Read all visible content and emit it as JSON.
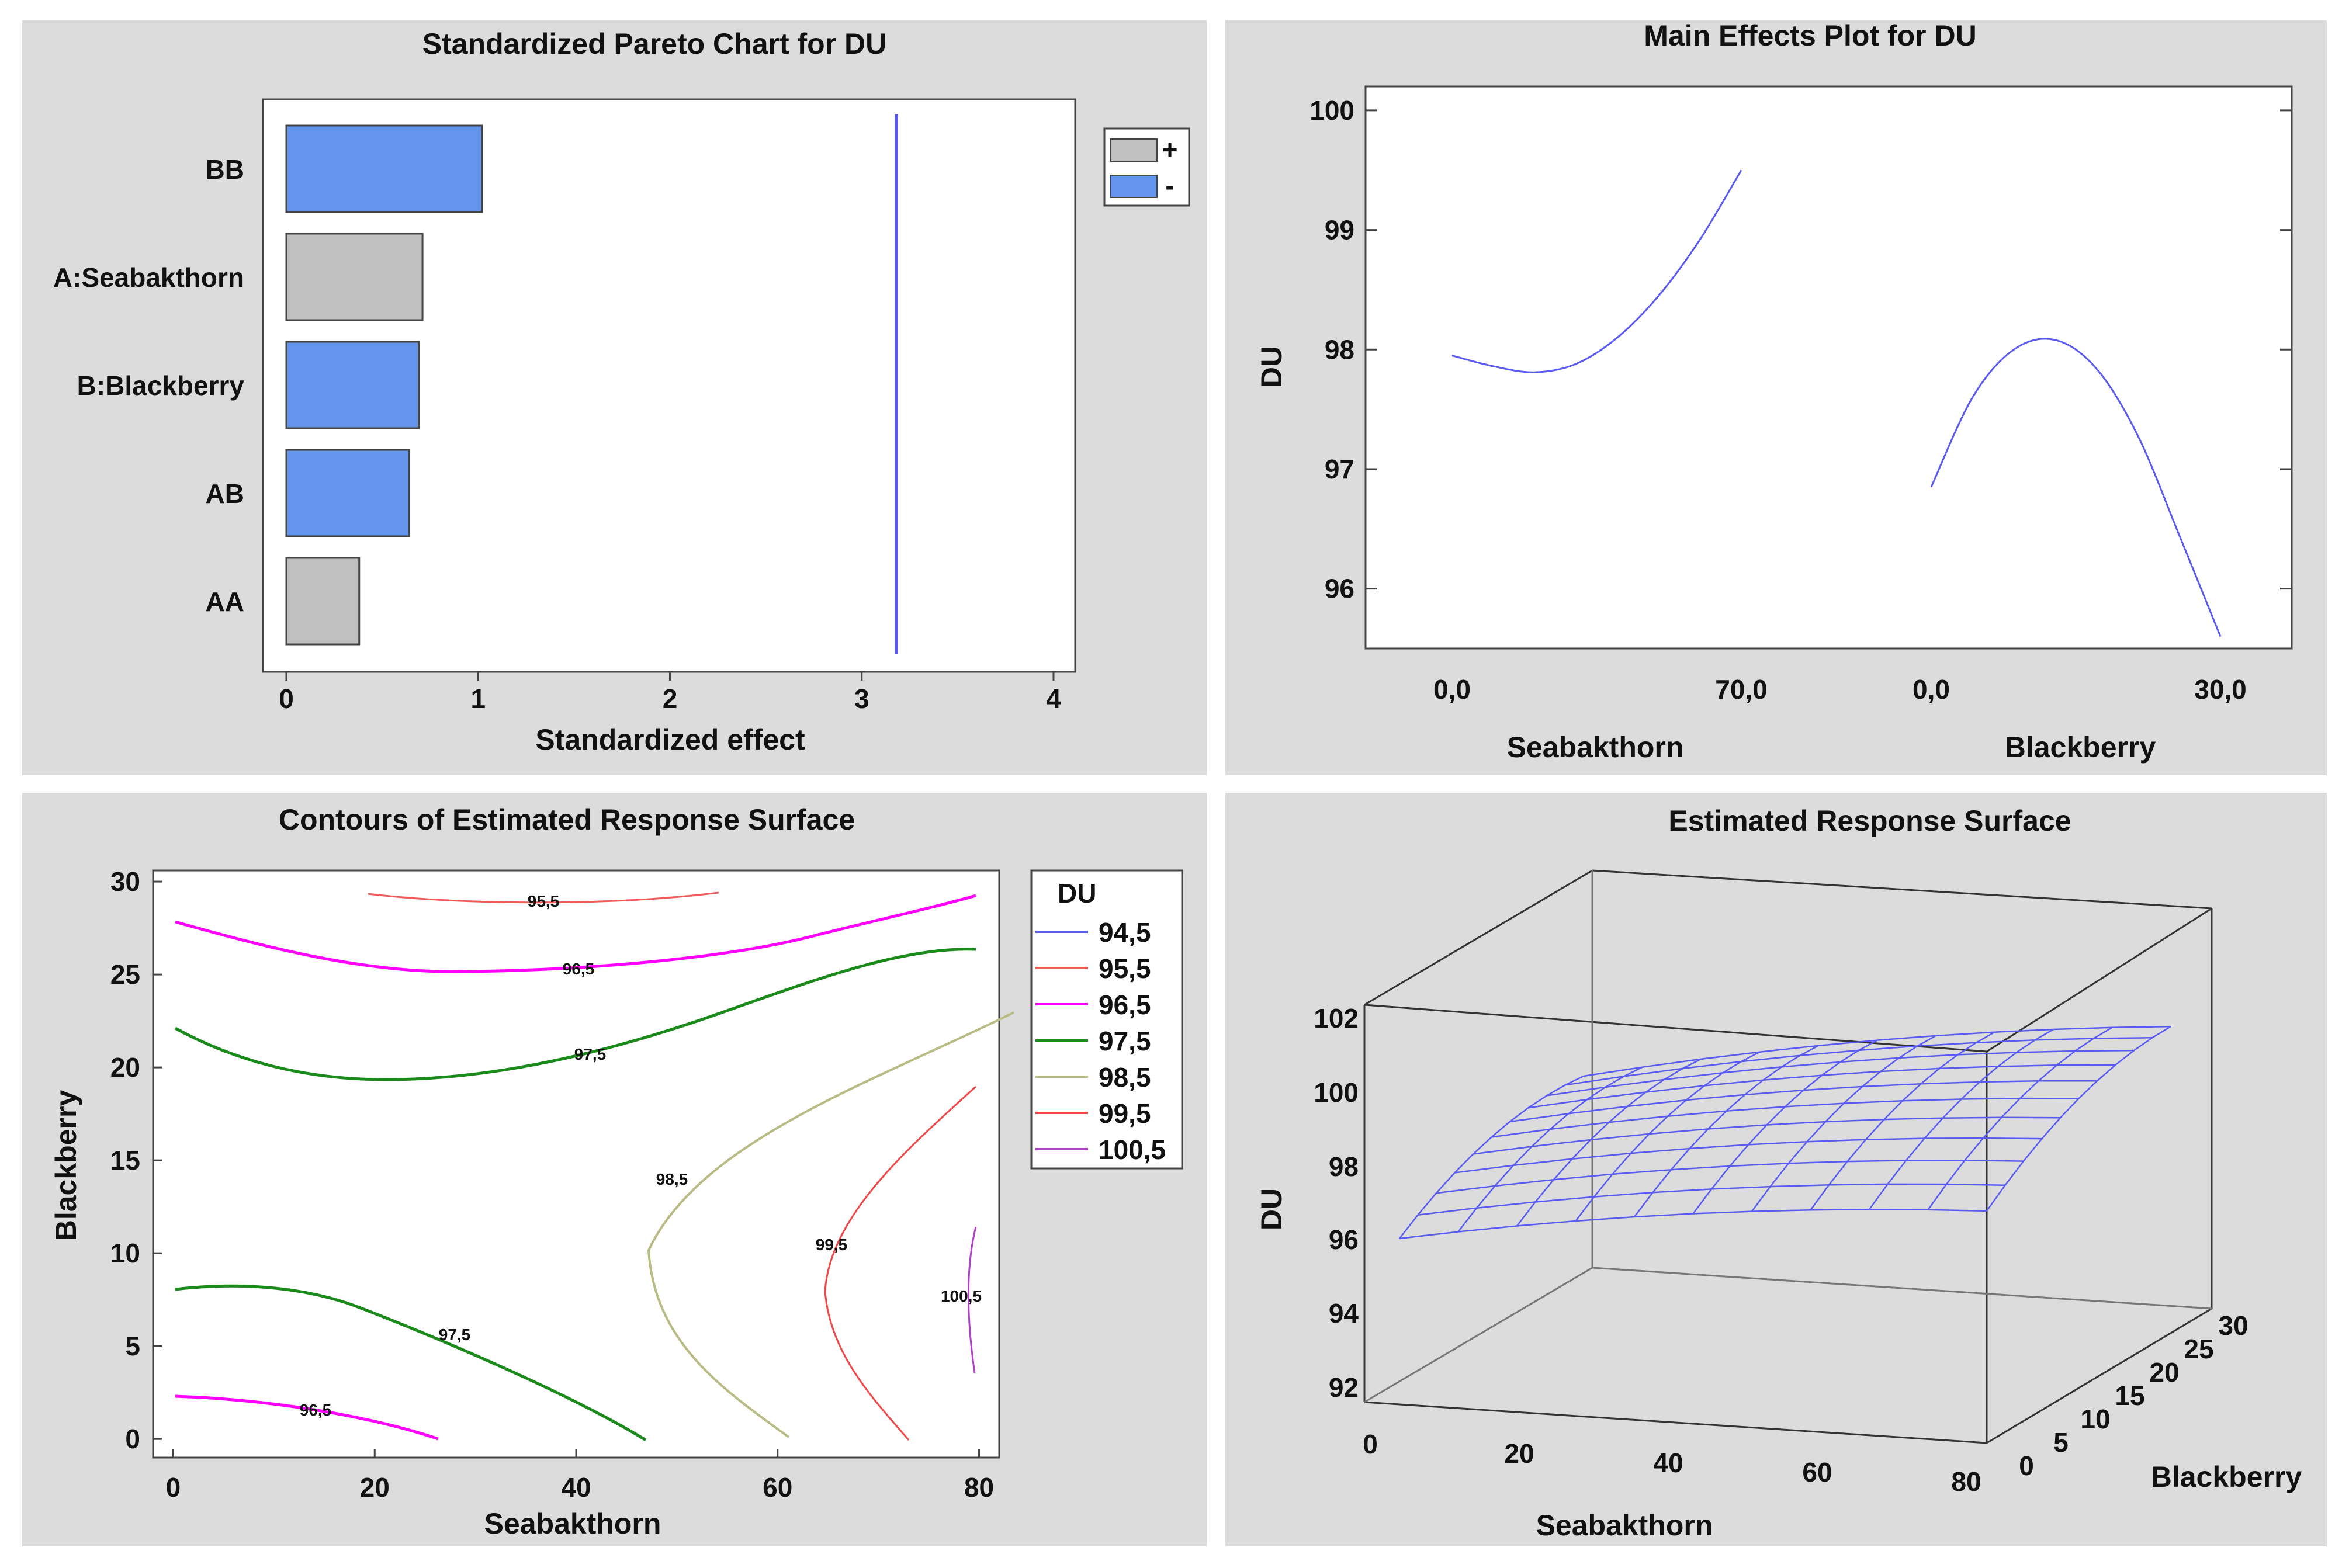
{
  "chart_data": [
    {
      "type": "bar",
      "orientation": "horizontal",
      "title": "Standardized Pareto Chart for DU",
      "xlabel": "Standardized effect",
      "xlim": [
        0,
        4
      ],
      "xticks": [
        "0",
        "1",
        "2",
        "3",
        "4"
      ],
      "categories": [
        "BB",
        "A:Seabakthorn",
        "B:Blackberry",
        "AB",
        "AA"
      ],
      "values": [
        1.02,
        0.71,
        0.69,
        0.64,
        0.38
      ],
      "signs": [
        "-",
        "+",
        "-",
        "-",
        "+"
      ],
      "threshold": 3.18,
      "legend": [
        {
          "sign": "+",
          "color": "#c0c0c0"
        },
        {
          "sign": "-",
          "color": "#6495ed"
        }
      ],
      "legend_position": "top-right"
    },
    {
      "type": "line",
      "title": "Main Effects Plot for DU",
      "ylabel": "DU",
      "ylim": [
        95.5,
        100.2
      ],
      "yticks": [
        "96",
        "97",
        "98",
        "99",
        "100"
      ],
      "series": [
        {
          "name": "Seabakthorn",
          "x_range": [
            "0,0",
            "70,0"
          ],
          "values": [
            97.95,
            97.86,
            97.81,
            97.88,
            98.1,
            98.45,
            98.92,
            99.5
          ]
        },
        {
          "name": "Blackberry",
          "x_range": [
            "0,0",
            "30,0"
          ],
          "values": [
            96.85,
            97.6,
            98.0,
            98.08,
            97.84,
            97.28,
            96.45,
            95.6
          ]
        }
      ],
      "line_color": "#5a5af0"
    },
    {
      "type": "contour",
      "title": "Contours of Estimated Response Surface",
      "xlabel": "Seabakthorn",
      "ylabel": "Blackberry",
      "xlim": [
        -2,
        82
      ],
      "ylim": [
        -1,
        30.6
      ],
      "xticks": [
        "0",
        "20",
        "40",
        "60",
        "80"
      ],
      "yticks": [
        "0",
        "5",
        "10",
        "15",
        "20",
        "25",
        "30"
      ],
      "legend_title": "DU",
      "levels": [
        {
          "label": "94,5",
          "color": "#5a5af0"
        },
        {
          "label": "95,5",
          "color": "#f05a5a"
        },
        {
          "label": "96,5",
          "color": "#ff00ff"
        },
        {
          "label": "97,5",
          "color": "#1a8a1a"
        },
        {
          "label": "98,5",
          "color": "#b8bc84"
        },
        {
          "label": "99,5",
          "color": "#f04848"
        },
        {
          "label": "100,5",
          "color": "#b040c8"
        }
      ],
      "curve_labels": [
        "95,5",
        "96,5",
        "97,5",
        "98,5",
        "99,5",
        "100,5",
        "97,5",
        "96,5"
      ]
    },
    {
      "type": "surface",
      "title": "Estimated Response Surface",
      "zlabel": "DU",
      "xlabel": "Seabakthorn",
      "ylabel": "Blackberry",
      "zticks": [
        "92",
        "94",
        "96",
        "98",
        "100",
        "102"
      ],
      "xticks": [
        "0",
        "20",
        "40",
        "60",
        "80"
      ],
      "yticks": [
        "0",
        "5",
        "10",
        "15",
        "20",
        "25",
        "30"
      ],
      "mesh_color": "#5a5af0"
    }
  ]
}
